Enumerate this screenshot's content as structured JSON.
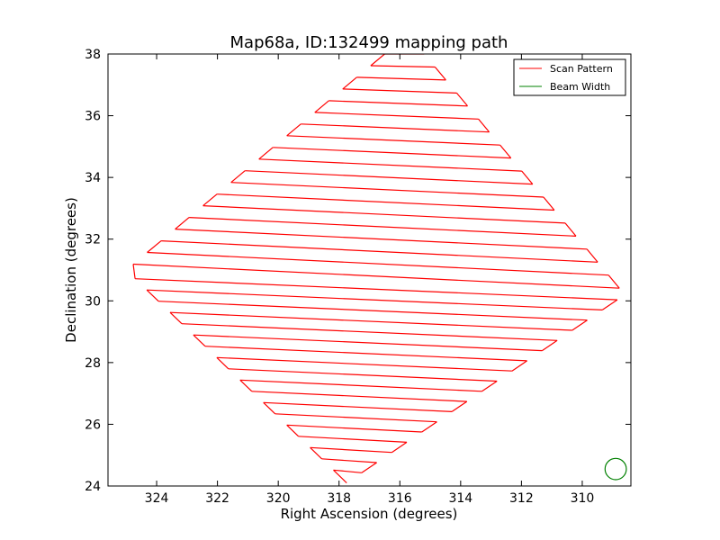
{
  "chart_data": {
    "type": "line",
    "title": "Map68a, ID:132499 mapping path",
    "xlabel": "Right Ascension (degrees)",
    "ylabel": "Declination (degrees)",
    "xlim": [
      325.6,
      308.4
    ],
    "ylim": [
      24,
      38
    ],
    "x_inverted": true,
    "xticks": [
      324,
      322,
      320,
      318,
      316,
      314,
      312,
      310
    ],
    "yticks": [
      24,
      26,
      28,
      30,
      32,
      34,
      36,
      38
    ],
    "grid": false,
    "legend_position": "top-right",
    "series": [
      {
        "name": "Scan Pattern",
        "color": "#ff0000",
        "num_legs": 38,
        "lower_left_start": [
          317.8,
          24.15
        ],
        "lower_left_end": [
          324.9,
          30.9
        ],
        "lower_right_end": [
          308.6,
          30.2
        ],
        "upper_left_start": [
          325.0,
          31.0
        ],
        "upper_left_end": [
          316.5,
          38.0
        ]
      },
      {
        "name": "Beam Width",
        "color": "#008000",
        "center": [
          308.9,
          24.55
        ],
        "radius_deg": 0.35
      }
    ]
  }
}
